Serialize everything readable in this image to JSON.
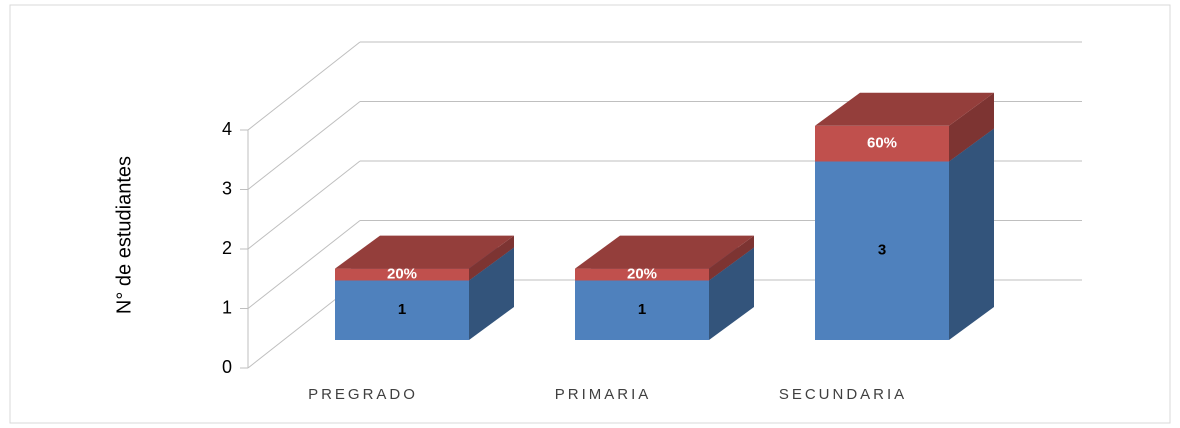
{
  "chart_data": {
    "type": "bar3d-stacked",
    "y_label": "N° de estudiantes",
    "categories": [
      "PREGRADO",
      "PRIMARIA",
      "SECUNDARIA"
    ],
    "series": [
      {
        "color": "#4f81bd",
        "values": [
          1,
          1,
          3
        ],
        "label_color": "#000000"
      },
      {
        "color": "#c0504d",
        "values": [
          0.2,
          0.2,
          0.6
        ],
        "value_labels": [
          "20%",
          "20%",
          "60%"
        ],
        "label_color": "#ffffff"
      }
    ],
    "ylim": [
      0,
      4
    ],
    "yticks": [
      0,
      1,
      2,
      3,
      4
    ],
    "grid": true
  }
}
